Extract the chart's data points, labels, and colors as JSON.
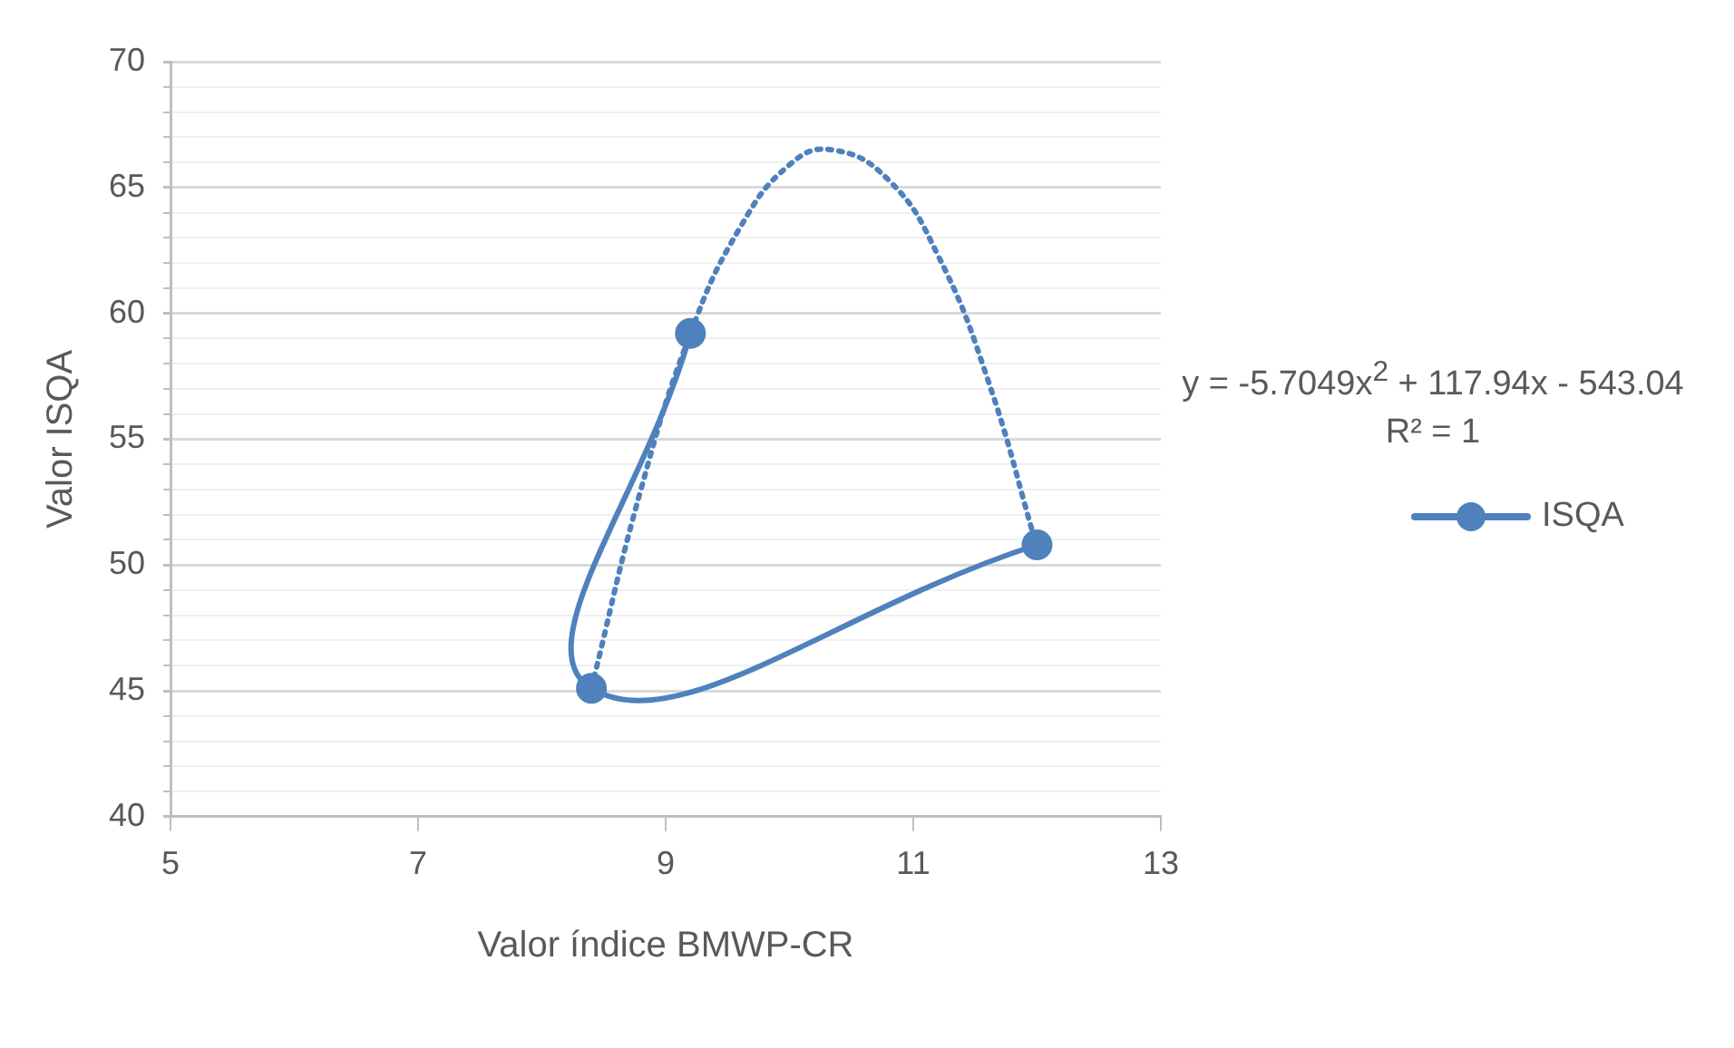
{
  "chart_data": {
    "type": "line",
    "xlabel": "Valor índice BMWP-CR",
    "ylabel": "Valor ISQA",
    "series": [
      {
        "name": "ISQA",
        "color": "#4f81bd",
        "x": [
          9.2,
          8.4,
          12.0
        ],
        "values": [
          59.2,
          45.1,
          50.8
        ],
        "marker": "circle",
        "line_style": "solid"
      },
      {
        "type": "line",
        "color": "#4f81bd",
        "x": [
          8.4,
          8.8,
          9.2,
          9.6,
          10.0,
          10.34,
          10.8,
          11.2,
          11.6,
          12.0
        ],
        "values": [
          45.1,
          53.0,
          59.2,
          63.4,
          65.9,
          66.5,
          65.3,
          62.3,
          57.4,
          50.7
        ],
        "marker": "none",
        "line_style": "dotted"
      }
    ],
    "xlim": [
      5,
      13
    ],
    "xticks": [
      5,
      7,
      9,
      11,
      13
    ],
    "ylim": [
      40,
      70
    ],
    "yticks": [
      40,
      {
        "value": 41,
        "label": null
      },
      {
        "value": 42,
        "label": null
      },
      {
        "value": 43,
        "label": null
      },
      {
        "value": 44,
        "label": null
      },
      45,
      {
        "value": 46,
        "label": null
      },
      {
        "value": 47,
        "label": null
      },
      {
        "value": 48,
        "label": null
      },
      {
        "value": 49,
        "label": null
      },
      50,
      {
        "value": 51,
        "label": null
      },
      {
        "value": 52,
        "label": null
      },
      {
        "value": 53,
        "label": null
      },
      {
        "value": 54,
        "label": null
      },
      55,
      {
        "value": 56,
        "label": null
      },
      {
        "value": 57,
        "label": null
      },
      {
        "value": 58,
        "label": null
      },
      {
        "value": 59,
        "label": null
      },
      60,
      {
        "value": 61,
        "label": null
      },
      {
        "value": 62,
        "label": null
      },
      {
        "value": 63,
        "label": null
      },
      {
        "value": 64,
        "label": null
      },
      65,
      {
        "value": 66,
        "label": null
      },
      {
        "value": 67,
        "label": null
      },
      {
        "value": 68,
        "label": null
      },
      {
        "value": 69,
        "label": null
      },
      70
    ],
    "grid": "y",
    "legend": "right",
    "annotations": [
      "y = -5.7049x$^{2}$ + 117.94x - 543.04",
      "R² = 1"
    ]
  }
}
